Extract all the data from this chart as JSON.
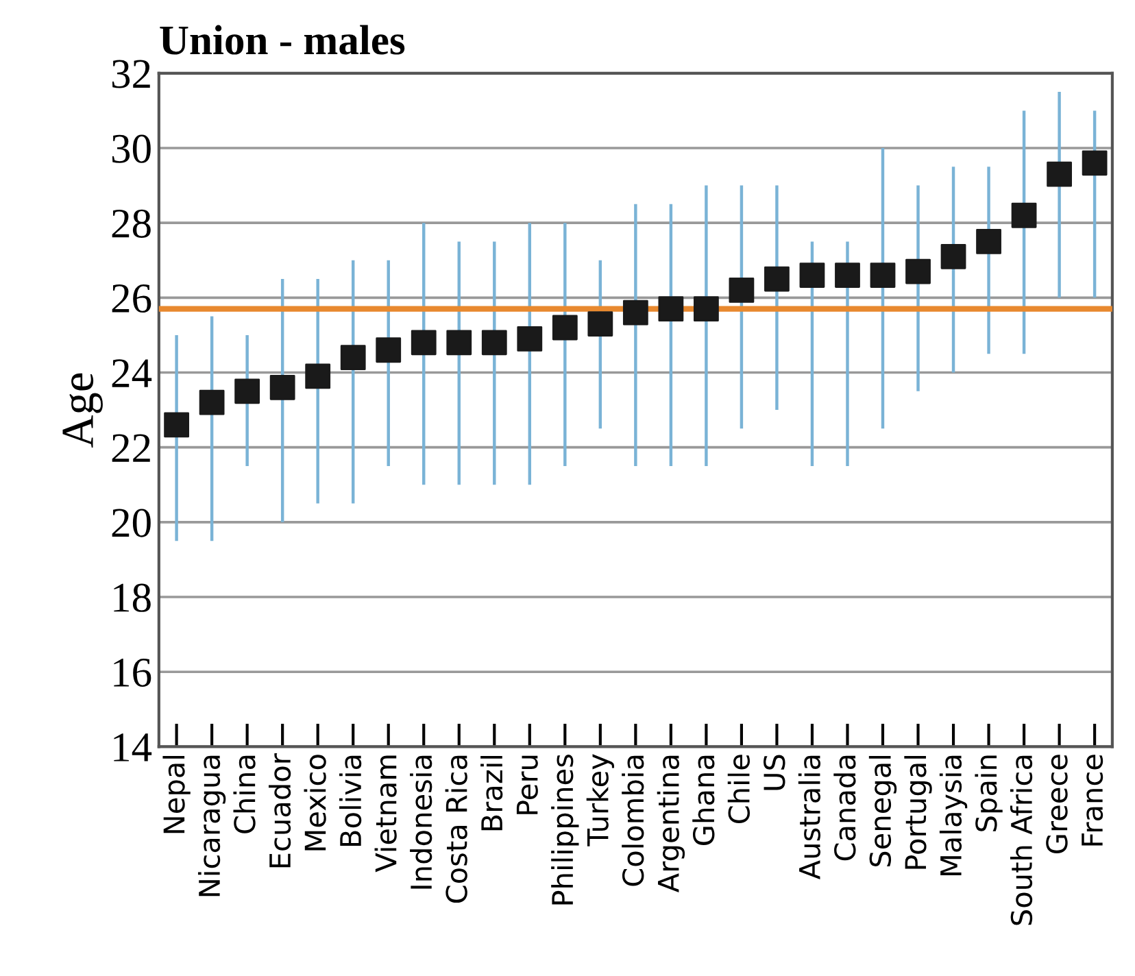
{
  "chart_data": {
    "type": "scatter",
    "title": "Union - males",
    "ylabel": "Age",
    "categories": [
      "Nepal",
      "Nicaragua",
      "China",
      "Ecuador",
      "Mexico",
      "Bolivia",
      "Vietnam",
      "Indonesia",
      "Costa Rica",
      "Brazil",
      "Peru",
      "Philippines",
      "Turkey",
      "Colombia",
      "Argentina",
      "Ghana",
      "Chile",
      "US",
      "Australia",
      "Canada",
      "Senegal",
      "Portugal",
      "Malaysia",
      "Spain",
      "South Africa",
      "Greece",
      "France"
    ],
    "series": [
      {
        "color": "#1a1a1a",
        "values": [
          22.6,
          23.2,
          23.5,
          23.6,
          23.9,
          24.4,
          24.6,
          24.8,
          24.8,
          24.8,
          24.9,
          25.2,
          25.3,
          25.6,
          25.7,
          25.7,
          26.2,
          26.5,
          26.6,
          26.6,
          26.6,
          26.7,
          27.1,
          27.5,
          28.2,
          29.3,
          29.6
        ],
        "errors": [
          [
            19.5,
            25
          ],
          [
            19.5,
            25.5
          ],
          [
            21.5,
            25
          ],
          [
            20,
            26.5
          ],
          [
            20.5,
            26.5
          ],
          [
            20.5,
            27
          ],
          [
            21.5,
            27
          ],
          [
            21,
            28
          ],
          [
            21,
            27.5
          ],
          [
            21,
            27.5
          ],
          [
            21,
            28
          ],
          [
            21.5,
            28
          ],
          [
            22.5,
            27
          ],
          [
            21.5,
            28.5
          ],
          [
            21.5,
            28.5
          ],
          [
            21.5,
            29
          ],
          [
            22.5,
            29
          ],
          [
            23,
            29
          ],
          [
            21.5,
            27.5
          ],
          [
            21.5,
            27.5
          ],
          [
            22.5,
            30
          ],
          [
            23.5,
            29
          ],
          [
            24,
            29.5
          ],
          [
            24.5,
            29.5
          ],
          [
            24.5,
            31
          ],
          [
            26,
            31.5
          ],
          [
            26,
            31
          ]
        ]
      }
    ],
    "ylim": [
      14,
      32
    ],
    "yticks": [
      14,
      16,
      18,
      20,
      22,
      24,
      26,
      28,
      30,
      32
    ],
    "marker": "square",
    "grid": "y",
    "ref_lines": [
      {
        "axis": "y",
        "value": 25.7,
        "color": "#e8892f"
      }
    ]
  }
}
